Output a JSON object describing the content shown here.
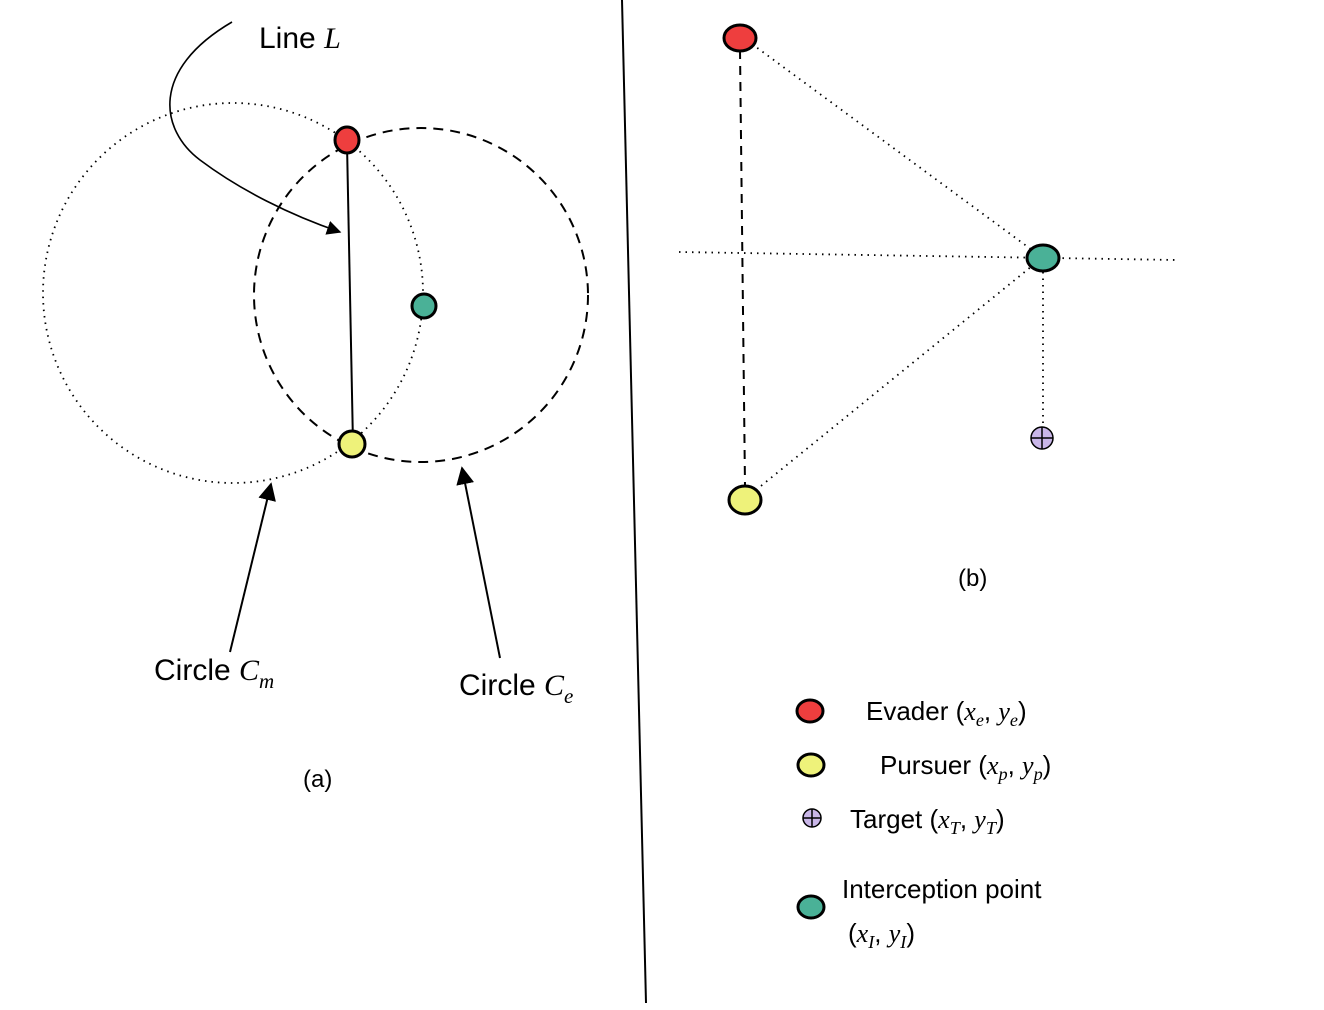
{
  "panel_a": {
    "line_label": {
      "prefix": "Line ",
      "var": "L"
    },
    "circle_m_label": {
      "prefix": "Circle ",
      "var": "C",
      "sub": "m"
    },
    "circle_e_label": {
      "prefix": "Circle ",
      "var": "C",
      "sub": "e"
    },
    "caption": "(a)"
  },
  "panel_b": {
    "caption": "(b)"
  },
  "legend": {
    "evader": {
      "name": "Evader ",
      "var1": "x",
      "sub1": "e",
      "var2": "y",
      "sub2": "e"
    },
    "pursuer": {
      "name": "Pursuer ",
      "var1": "x",
      "sub1": "p",
      "var2": "y",
      "sub2": "p"
    },
    "target": {
      "name": "Target ",
      "var1": "x",
      "sub1": "T",
      "var2": "y",
      "sub2": "T"
    },
    "interception": {
      "name": "Interception point",
      "var1": "x",
      "sub1": "I",
      "var2": "y",
      "sub2": "I"
    }
  },
  "colors": {
    "evader": "#ee3e3e",
    "pursuer": "#eef27a",
    "interception": "#4ab197",
    "target": "#c9b6e8",
    "stroke": "#000000"
  }
}
